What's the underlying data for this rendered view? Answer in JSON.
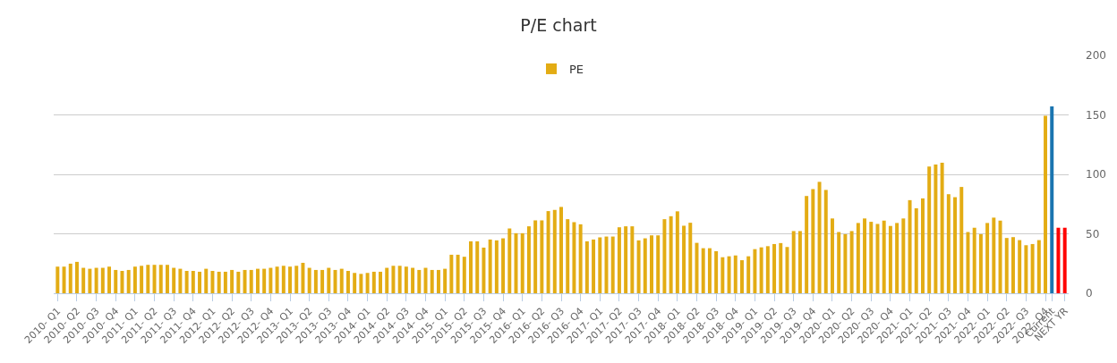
{
  "chart_data": {
    "type": "bar",
    "title": "P/E chart",
    "categories": [
      "2010- Q1",
      null,
      null,
      "2010- Q2",
      null,
      null,
      "2010- Q3",
      null,
      null,
      "2010- Q4",
      null,
      null,
      "2011- Q1",
      null,
      null,
      "2011- Q2",
      null,
      null,
      "2011- Q3",
      null,
      null,
      "2011- Q4",
      null,
      null,
      "2012- Q1",
      null,
      null,
      "2012- Q2",
      null,
      null,
      "2012- Q3",
      null,
      null,
      "2012- Q4",
      null,
      null,
      "2013- Q1",
      null,
      null,
      "2013- Q2",
      null,
      null,
      "2013- Q3",
      null,
      null,
      "2013- Q4",
      null,
      null,
      "2014- Q1",
      null,
      null,
      "2014- Q2",
      null,
      null,
      "2014- Q3",
      null,
      null,
      "2014- Q4",
      null,
      null,
      "2015- Q1",
      null,
      null,
      "2015- Q2",
      null,
      null,
      "2015- Q3",
      null,
      null,
      "2015- Q4",
      null,
      null,
      "2016- Q1",
      null,
      null,
      "2016- Q2",
      null,
      null,
      "2016- Q3",
      null,
      null,
      "2016- Q4",
      null,
      null,
      "2017- Q1",
      null,
      null,
      "2017- Q2",
      null,
      null,
      "2017- Q3",
      null,
      null,
      "2017- Q4",
      null,
      null,
      "2018- Q1",
      null,
      null,
      "2018- Q2",
      null,
      null,
      "2018- Q3",
      null,
      null,
      "2018- Q4",
      null,
      null,
      "2019- Q1",
      null,
      null,
      "2019- Q2",
      null,
      null,
      "2019- Q3",
      null,
      null,
      "2019- Q4",
      null,
      null,
      "2020- Q1",
      null,
      null,
      "2020- Q2",
      null,
      null,
      "2020- Q3",
      null,
      null,
      "2020- Q4",
      null,
      null,
      "2021- Q1",
      null,
      null,
      "2021- Q2",
      null,
      null,
      "2021- Q3",
      null,
      null,
      "2021- Q4",
      null,
      null,
      "2022- Q1",
      null,
      null,
      "2022- Q2",
      null,
      null,
      "2022- Q3",
      null,
      null,
      "2022- Q4",
      "Current",
      null,
      "NEXT YR"
    ],
    "series": [
      {
        "name": "PE",
        "values": [
          22.4,
          22.4,
          24.9,
          26.4,
          21.4,
          20.6,
          21.4,
          21.4,
          22.4,
          19.6,
          18.8,
          19.6,
          22.4,
          23.1,
          23.9,
          23.9,
          23.9,
          23.9,
          21.4,
          20.6,
          18.8,
          18.8,
          18.1,
          20.6,
          18.8,
          18.1,
          18.1,
          19.6,
          18.1,
          19.6,
          19.6,
          20.6,
          20.6,
          21.4,
          22.4,
          23.1,
          22.4,
          23.1,
          25.6,
          21.4,
          19.6,
          19.6,
          21.4,
          19.6,
          20.6,
          18.8,
          17.1,
          16.3,
          17.1,
          18.1,
          18.1,
          21.4,
          23.1,
          23.1,
          22.4,
          21.4,
          19.6,
          21.4,
          19.6,
          19.6,
          20.6,
          32.4,
          32.4,
          30.7,
          43.7,
          43.7,
          38.4,
          45.2,
          44.5,
          46.2,
          54.5,
          50.5,
          50.5,
          56.3,
          61.3,
          61.3,
          69.1,
          70.1,
          72.6,
          62.3,
          59.8,
          58.0,
          43.7,
          45.2,
          47.0,
          47.7,
          47.7,
          55.5,
          56.3,
          56.3,
          44.5,
          46.2,
          48.7,
          48.7,
          62.3,
          64.8,
          68.9,
          56.8,
          59.3,
          42.4,
          37.9,
          37.9,
          35.4,
          30.3,
          31.1,
          31.8,
          27.8,
          31.1,
          37.1,
          38.6,
          39.6,
          41.4,
          42.2,
          38.9,
          52.3,
          52.3,
          81.8,
          87.6,
          93.7,
          86.9,
          62.9,
          51.5,
          49.7,
          52.3,
          59.1,
          62.9,
          60.1,
          58.3,
          61.1,
          56.6,
          59.1,
          62.9,
          78.3,
          71.5,
          79.8,
          106.6,
          108.3,
          109.8,
          83.3,
          80.8,
          89.4,
          51.5,
          55.1,
          49.7,
          59.1,
          63.6,
          61.1,
          46.5,
          47.2,
          44.7,
          40.4,
          41.4,
          44.7,
          149.2,
          157.1,
          55.1,
          55.1
        ],
        "colors": [
          "#e3ac14",
          "#e3ac14",
          "#e3ac14",
          "#e3ac14",
          "#e3ac14",
          "#e3ac14",
          "#e3ac14",
          "#e3ac14",
          "#e3ac14",
          "#e3ac14",
          "#e3ac14",
          "#e3ac14",
          "#e3ac14",
          "#e3ac14",
          "#e3ac14",
          "#e3ac14",
          "#e3ac14",
          "#e3ac14",
          "#e3ac14",
          "#e3ac14",
          "#e3ac14",
          "#e3ac14",
          "#e3ac14",
          "#e3ac14",
          "#e3ac14",
          "#e3ac14",
          "#e3ac14",
          "#e3ac14",
          "#e3ac14",
          "#e3ac14",
          "#e3ac14",
          "#e3ac14",
          "#e3ac14",
          "#e3ac14",
          "#e3ac14",
          "#e3ac14",
          "#e3ac14",
          "#e3ac14",
          "#e3ac14",
          "#e3ac14",
          "#e3ac14",
          "#e3ac14",
          "#e3ac14",
          "#e3ac14",
          "#e3ac14",
          "#e3ac14",
          "#e3ac14",
          "#e3ac14",
          "#e3ac14",
          "#e3ac14",
          "#e3ac14",
          "#e3ac14",
          "#e3ac14",
          "#e3ac14",
          "#e3ac14",
          "#e3ac14",
          "#e3ac14",
          "#e3ac14",
          "#e3ac14",
          "#e3ac14",
          "#e3ac14",
          "#e3ac14",
          "#e3ac14",
          "#e3ac14",
          "#e3ac14",
          "#e3ac14",
          "#e3ac14",
          "#e3ac14",
          "#e3ac14",
          "#e3ac14",
          "#e3ac14",
          "#e3ac14",
          "#e3ac14",
          "#e3ac14",
          "#e3ac14",
          "#e3ac14",
          "#e3ac14",
          "#e3ac14",
          "#e3ac14",
          "#e3ac14",
          "#e3ac14",
          "#e3ac14",
          "#e3ac14",
          "#e3ac14",
          "#e3ac14",
          "#e3ac14",
          "#e3ac14",
          "#e3ac14",
          "#e3ac14",
          "#e3ac14",
          "#e3ac14",
          "#e3ac14",
          "#e3ac14",
          "#e3ac14",
          "#e3ac14",
          "#e3ac14",
          "#e3ac14",
          "#e3ac14",
          "#e3ac14",
          "#e3ac14",
          "#e3ac14",
          "#e3ac14",
          "#e3ac14",
          "#e3ac14",
          "#e3ac14",
          "#e3ac14",
          "#e3ac14",
          "#e3ac14",
          "#e3ac14",
          "#e3ac14",
          "#e3ac14",
          "#e3ac14",
          "#e3ac14",
          "#e3ac14",
          "#e3ac14",
          "#e3ac14",
          "#e3ac14",
          "#e3ac14",
          "#e3ac14",
          "#e3ac14",
          "#e3ac14",
          "#e3ac14",
          "#e3ac14",
          "#e3ac14",
          "#e3ac14",
          "#e3ac14",
          "#e3ac14",
          "#e3ac14",
          "#e3ac14",
          "#e3ac14",
          "#e3ac14",
          "#e3ac14",
          "#e3ac14",
          "#e3ac14",
          "#e3ac14",
          "#e3ac14",
          "#e3ac14",
          "#e3ac14",
          "#e3ac14",
          "#e3ac14",
          "#e3ac14",
          "#e3ac14",
          "#e3ac14",
          "#e3ac14",
          "#e3ac14",
          "#e3ac14",
          "#e3ac14",
          "#e3ac14",
          "#e3ac14",
          "#e3ac14",
          "#e3ac14",
          "#e3ac14",
          "#e3ac14",
          "#e3ac14",
          "#1a75b0",
          "#ff0000",
          "#ff0000"
        ]
      }
    ],
    "ylim": [
      0,
      200
    ],
    "yticks": [
      0,
      50,
      100,
      150,
      200
    ],
    "grid": "y",
    "legend": "top"
  }
}
